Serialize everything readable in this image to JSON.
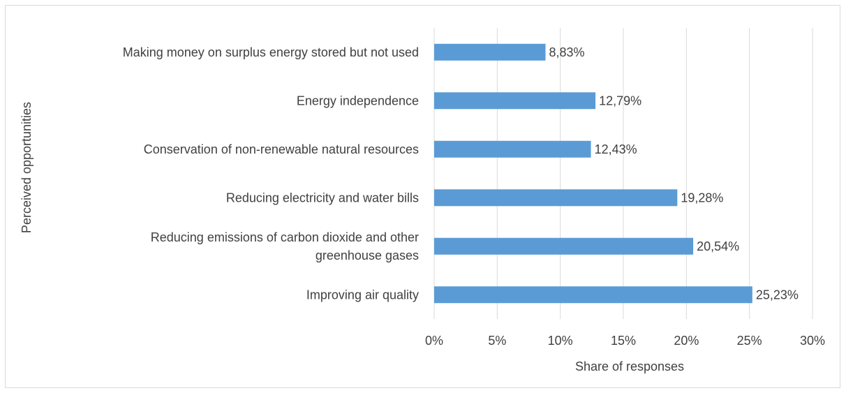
{
  "chart_data": {
    "type": "bar",
    "orientation": "horizontal",
    "categories": [
      [
        "Making money on surplus energy stored but not used"
      ],
      [
        "Energy independence"
      ],
      [
        "Conservation of non-renewable natural resources"
      ],
      [
        "Reducing electricity and water bills"
      ],
      [
        "Reducing emissions of carbon dioxide and other",
        "greenhouse gases"
      ],
      [
        "Improving air quality"
      ]
    ],
    "values": [
      8.83,
      12.79,
      12.43,
      19.28,
      20.54,
      25.23
    ],
    "data_labels": [
      "8,83%",
      "12,79%",
      "12,43%",
      "19,28%",
      "20,54%",
      "25,23%"
    ],
    "xlabel": "Share of responses",
    "ylabel": "Perceived opportunities",
    "xlim": [
      0,
      30
    ],
    "x_ticks": [
      0,
      5,
      10,
      15,
      20,
      25,
      30
    ],
    "x_tick_labels": [
      "0%",
      "5%",
      "10%",
      "15%",
      "20%",
      "25%",
      "30%"
    ],
    "grid": "vertical",
    "legend": "none",
    "colors": {
      "bar": "#5b9bd5",
      "grid": "#d9d9d9",
      "text": "#404040"
    }
  }
}
